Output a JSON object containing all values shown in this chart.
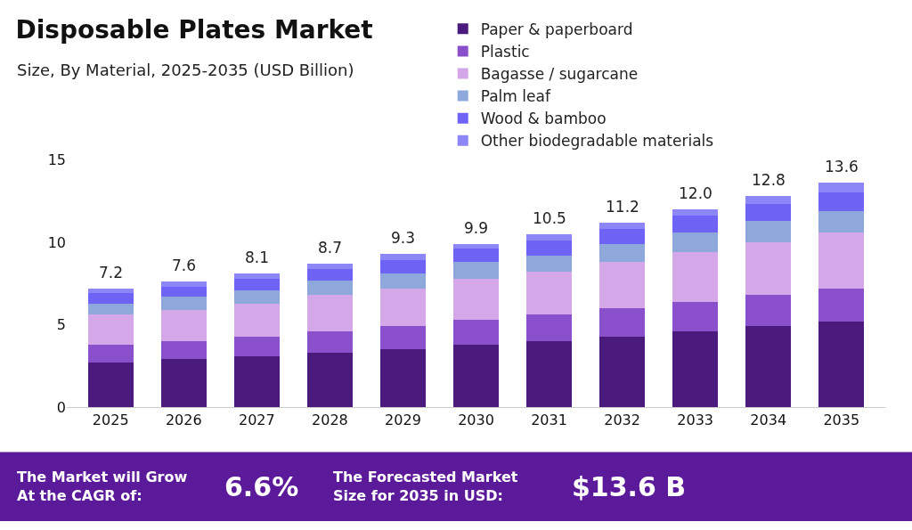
{
  "chart_data": {
    "type": "bar",
    "stacked": true,
    "title": "Disposable Plates Market",
    "subtitle": "Size, By Material, 2025-2035 (USD Billion)",
    "categories": [
      "2025",
      "2026",
      "2027",
      "2028",
      "2029",
      "2030",
      "2031",
      "2032",
      "2033",
      "2034",
      "2035"
    ],
    "series": [
      {
        "name": "Paper & paperboard",
        "color": "#4b1a7d",
        "values": [
          2.7,
          2.9,
          3.1,
          3.3,
          3.5,
          3.8,
          4.0,
          4.3,
          4.6,
          4.9,
          5.2
        ]
      },
      {
        "name": "Plastic",
        "color": "#8a4fcb",
        "values": [
          1.1,
          1.1,
          1.2,
          1.3,
          1.4,
          1.5,
          1.6,
          1.7,
          1.8,
          1.9,
          2.0
        ]
      },
      {
        "name": "Bagasse / sugarcane",
        "color": "#d4a8e8",
        "values": [
          1.8,
          1.9,
          2.0,
          2.2,
          2.3,
          2.5,
          2.6,
          2.8,
          3.0,
          3.2,
          3.4
        ]
      },
      {
        "name": "Palm leaf",
        "color": "#8fa8dc",
        "values": [
          0.7,
          0.8,
          0.8,
          0.9,
          0.9,
          1.0,
          1.0,
          1.1,
          1.2,
          1.3,
          1.3
        ]
      },
      {
        "name": "Wood & bamboo",
        "color": "#6e63f5",
        "values": [
          0.6,
          0.6,
          0.7,
          0.7,
          0.8,
          0.8,
          0.9,
          0.9,
          1.0,
          1.0,
          1.1
        ]
      },
      {
        "name": "Other biodegradable materials",
        "color": "#8c86f7",
        "values": [
          0.3,
          0.3,
          0.3,
          0.3,
          0.4,
          0.3,
          0.4,
          0.4,
          0.4,
          0.5,
          0.6
        ]
      }
    ],
    "totals": [
      "7.2",
      "7.6",
      "8.1",
      "8.7",
      "9.3",
      "9.9",
      "10.5",
      "11.2",
      "12.0",
      "12.8",
      "13.6"
    ],
    "ylim": [
      0,
      15
    ],
    "yticks": [
      0,
      5,
      10,
      15
    ],
    "grid": false,
    "legend": "top right",
    "annotations": [
      "The Market will Grow\nAt the CAGR of:",
      "6.6%",
      "The Forecasted Market\nSize for 2035 in USD:",
      "$13.6 B"
    ]
  }
}
